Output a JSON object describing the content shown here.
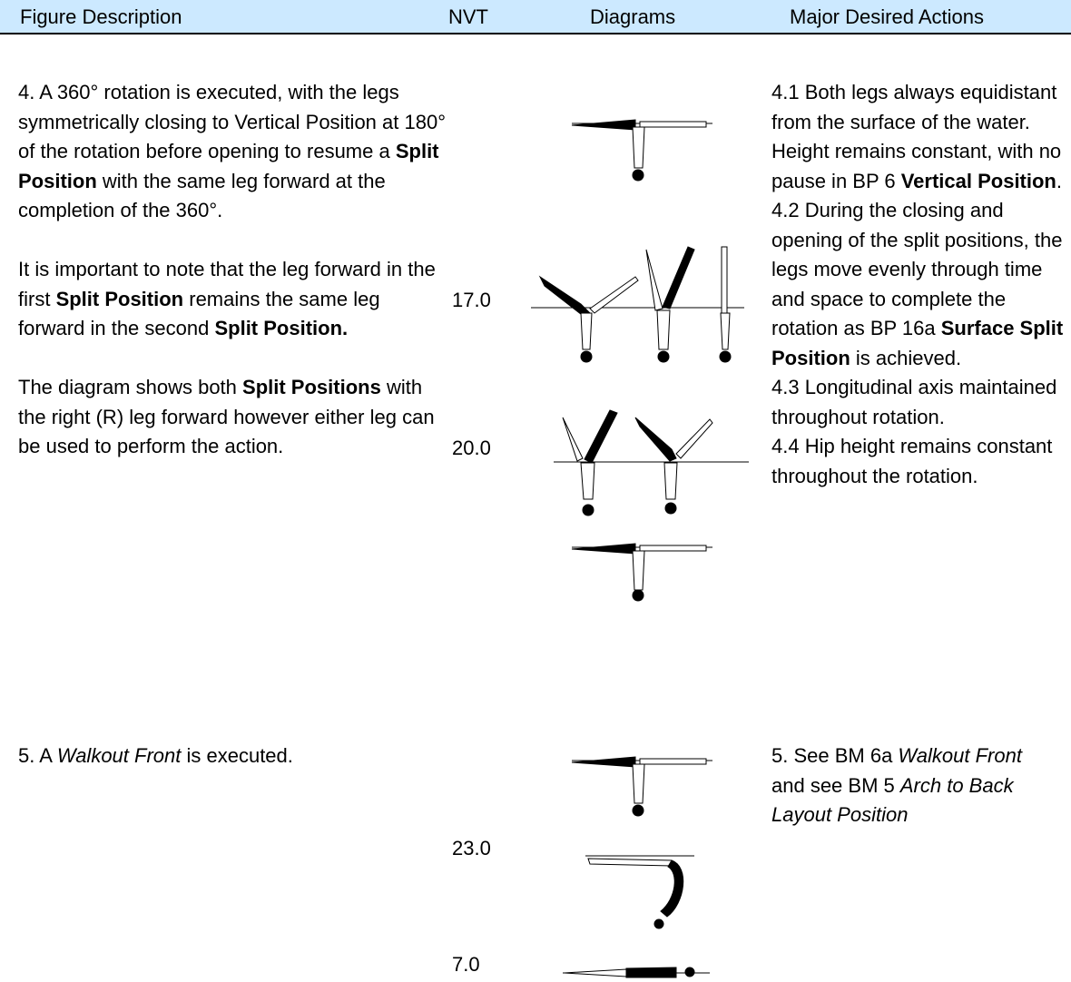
{
  "header": {
    "columns": [
      "Figure Description",
      "NVT",
      "Diagrams",
      "Major Desired Actions"
    ]
  },
  "rows": [
    {
      "description": [
        [
          {
            "t": "4. A 360° rotation is executed, with the legs symmetrically closing to Vertical Position at 180° of the rotation before opening to resume a "
          },
          {
            "t": "Split Position",
            "bold": true
          },
          {
            "t": " with the same leg forward at the completion of the 360°."
          }
        ],
        [
          {
            "t": "It is important to note that the leg forward in the first "
          },
          {
            "t": "Split Position",
            "bold": true
          },
          {
            "t": " remains the same leg forward in the second "
          },
          {
            "t": "Split Position.",
            "bold": true
          }
        ],
        [
          {
            "t": "The diagram shows both "
          },
          {
            "t": "Split Positions",
            "bold": true
          },
          {
            "t": " with the right (R) leg forward however either leg can be used to perform the action."
          }
        ]
      ],
      "nvt": [
        "17.0",
        "20.0"
      ],
      "actions": [
        [
          {
            "t": "4.1 Both legs always equidistant from the surface of the water. Height remains constant, with no pause in BP 6 "
          },
          {
            "t": "Vertical Position",
            "bold": true
          },
          {
            "t": "."
          }
        ],
        [
          {
            "t": "4.2 During the closing and opening of the split positions, the legs move evenly through time and space to complete the rotation as BP 16a "
          },
          {
            "t": "Surface Split Position",
            "bold": true
          },
          {
            "t": " is achieved."
          }
        ],
        [
          {
            "t": "4.3 Longitudinal axis maintained throughout rotation."
          }
        ],
        [
          {
            "t": "4.4 Hip height remains constant throughout the rotation."
          }
        ]
      ]
    },
    {
      "description": [
        [
          {
            "t": "5. A "
          },
          {
            "t": "Walkout Front",
            "italic": true
          },
          {
            "t": " is executed."
          }
        ]
      ],
      "nvt": [
        "23.0",
        "7.0"
      ],
      "actions": [
        [
          {
            "t": "5. See BM 6a "
          },
          {
            "t": "Walkout Front",
            "italic": true
          },
          {
            "t": " and see BM 5 "
          },
          {
            "t": "Arch to Back Layout Position",
            "italic": true
          }
        ]
      ]
    }
  ]
}
